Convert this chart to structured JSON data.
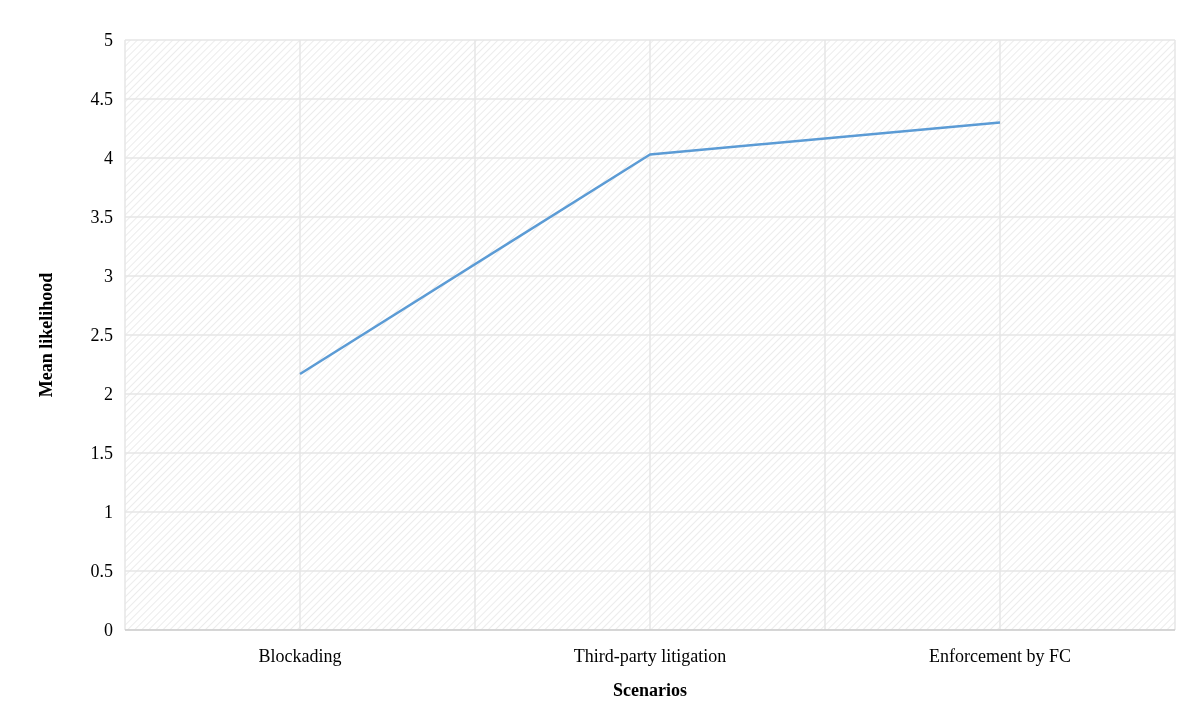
{
  "chart_data": {
    "type": "line",
    "xlabel": "Scenarios",
    "ylabel": "Mean likelihood",
    "categories": [
      "Blockading",
      "Third-party litigation",
      "Enforcement by FC"
    ],
    "series": [
      {
        "color": "#5b9bd5",
        "values": [
          2.17,
          4.03,
          4.3
        ]
      }
    ],
    "ylim": [
      0,
      5
    ],
    "yticks": [
      0,
      0.5,
      1,
      1.5,
      2,
      2.5,
      3,
      3.5,
      4,
      4.5,
      5
    ],
    "grid": true,
    "marker": "none",
    "line_style": "solid"
  }
}
